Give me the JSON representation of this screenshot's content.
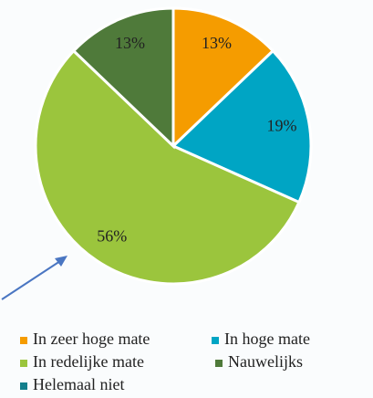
{
  "chart_data": {
    "type": "pie",
    "categories": [
      "In zeer hoge mate",
      "In hoge mate",
      "In redelijke mate",
      "Nauwelijks",
      "Helemaal niet"
    ],
    "values": [
      13,
      19,
      56,
      13,
      0
    ],
    "value_labels": [
      "13%",
      "19%",
      "56%",
      "13%",
      null
    ],
    "colors": [
      "#f59c00",
      "#00a5c4",
      "#9bc53d",
      "#4f7a3a",
      "#137f8c"
    ],
    "legend": "bottom"
  }
}
